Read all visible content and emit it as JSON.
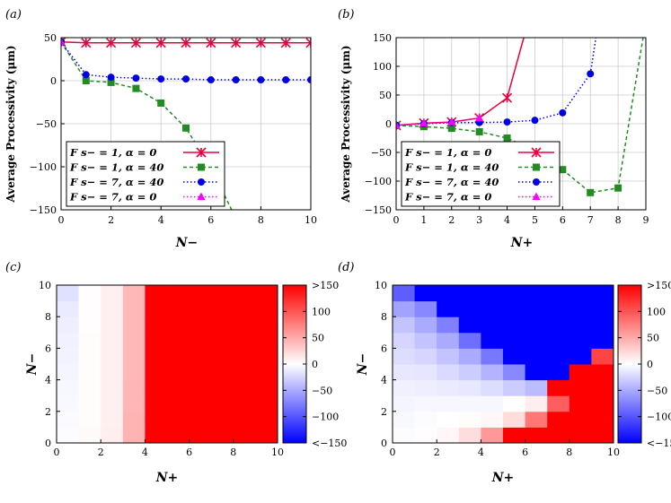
{
  "panels": {
    "a": {
      "label": "(a)"
    },
    "b": {
      "label": "(b)"
    },
    "c": {
      "label": "(c)"
    },
    "d": {
      "label": "(d)"
    }
  },
  "legend": {
    "entries": [
      {
        "text": "F s− = 1, α = 0",
        "color": "#e8003c",
        "marker": "star",
        "dash": "solid"
      },
      {
        "text": "F s− = 1, α = 40",
        "color": "#228b22",
        "marker": "square",
        "dash": "dashed"
      },
      {
        "text": "F s− = 7, α = 40",
        "color": "#0000e0",
        "marker": "circle",
        "dash": "dotted"
      },
      {
        "text": "F s− = 7, α = 0",
        "color": "#ff00ff",
        "marker": "triangle",
        "dash": "dotted"
      }
    ]
  },
  "colorbar": {
    "tick_labels": [
      ">150",
      "100",
      "50",
      "0",
      "−50",
      "−100",
      "<−150"
    ],
    "tick_values": [
      150,
      100,
      50,
      0,
      -50,
      -100,
      -150
    ],
    "colors": {
      "neg": "#0000ff",
      "zero": "#ffffff",
      "pos": "#ff0000"
    }
  },
  "chart_data": [
    {
      "panel": "a",
      "type": "line",
      "xlabel": "N−",
      "ylabel": "Average Processivity (μm)",
      "xlim": [
        0,
        10
      ],
      "ylim": [
        -150,
        50
      ],
      "xticks": [
        0,
        2,
        4,
        6,
        8,
        10
      ],
      "yticks": [
        -150,
        -100,
        -50,
        0,
        50
      ],
      "grid": true,
      "legend_position": "bottom-left",
      "series": [
        {
          "name": "F s− = 1, α = 0",
          "x": [
            0,
            1,
            2,
            3,
            4,
            5,
            6,
            7,
            8,
            9,
            10
          ],
          "y": [
            45,
            44,
            44,
            44,
            44,
            44,
            44,
            44,
            44,
            44,
            44
          ]
        },
        {
          "name": "F s− = 1, α = 40",
          "x": [
            0,
            1,
            2,
            3,
            4,
            5,
            6,
            7
          ],
          "y": [
            45,
            0,
            -2,
            -9,
            -26,
            -55,
            -101,
            -160
          ]
        },
        {
          "name": "F s− = 7, α = 40",
          "x": [
            0,
            1,
            2,
            3,
            4,
            5,
            6,
            7,
            8,
            9,
            10
          ],
          "y": [
            45,
            7,
            4,
            3,
            2,
            2,
            1,
            1,
            1,
            1,
            1
          ]
        },
        {
          "name": "F s− = 7, α = 0",
          "x": [
            0
          ],
          "y": [
            45
          ]
        }
      ]
    },
    {
      "panel": "b",
      "type": "line",
      "xlabel": "N+",
      "ylabel": "Average Processivity (μm)",
      "xlim": [
        0,
        9
      ],
      "ylim": [
        -150,
        150
      ],
      "xticks": [
        0,
        1,
        2,
        3,
        4,
        5,
        6,
        7,
        8,
        9
      ],
      "yticks": [
        -150,
        -100,
        -50,
        0,
        50,
        100,
        150
      ],
      "grid": true,
      "legend_position": "bottom-left",
      "series": [
        {
          "name": "F s− = 1, α = 0",
          "x": [
            0,
            1,
            2,
            3,
            4,
            4.6
          ],
          "y": [
            -3,
            1,
            3,
            10,
            45,
            150
          ]
        },
        {
          "name": "F s− = 1, α = 40",
          "x": [
            0,
            1,
            2,
            3,
            4,
            5,
            6,
            7,
            8,
            8.9
          ],
          "y": [
            -3,
            -5,
            -8,
            -14,
            -25,
            -46,
            -80,
            -120,
            -112,
            150
          ]
        },
        {
          "name": "F s− = 7, α = 40",
          "x": [
            0,
            1,
            2,
            3,
            4,
            5,
            6,
            7,
            7.2
          ],
          "y": [
            -3,
            0,
            2,
            2,
            3,
            6,
            19,
            87,
            150
          ]
        },
        {
          "name": "F s− = 7, α = 0",
          "x": [
            0,
            1,
            2,
            3
          ],
          "y": [
            -3,
            1,
            3,
            10
          ]
        }
      ]
    },
    {
      "panel": "c",
      "type": "heatmap",
      "xlabel": "N+",
      "ylabel": "N−",
      "xlim": [
        0,
        10
      ],
      "ylim": [
        0,
        10
      ],
      "xticks": [
        0,
        2,
        4,
        6,
        8,
        10
      ],
      "yticks": [
        0,
        2,
        4,
        6,
        8,
        10
      ],
      "zlim": [
        -150,
        150
      ],
      "rows_bottom_to_top": [
        [
          -2,
          3,
          10,
          45,
          150,
          150,
          150,
          150,
          150,
          150
        ],
        [
          -3,
          2,
          9,
          44,
          150,
          150,
          150,
          150,
          150,
          150
        ],
        [
          -4,
          2,
          9,
          43,
          150,
          150,
          150,
          150,
          150,
          150
        ],
        [
          -5,
          2,
          9,
          43,
          150,
          150,
          150,
          150,
          150,
          150
        ],
        [
          -6,
          2,
          9,
          42,
          150,
          150,
          150,
          150,
          150,
          150
        ],
        [
          -7,
          2,
          9,
          42,
          150,
          150,
          150,
          150,
          150,
          150
        ],
        [
          -8,
          2,
          9,
          42,
          150,
          150,
          150,
          150,
          150,
          150
        ],
        [
          -10,
          1,
          9,
          42,
          150,
          150,
          150,
          150,
          150,
          150
        ],
        [
          -12,
          1,
          9,
          42,
          150,
          150,
          150,
          150,
          150,
          150
        ],
        [
          -18,
          1,
          9,
          42,
          150,
          150,
          150,
          150,
          150,
          150
        ]
      ]
    },
    {
      "panel": "d",
      "type": "heatmap",
      "xlabel": "N+",
      "ylabel": "N−",
      "xlim": [
        0,
        10
      ],
      "ylim": [
        0,
        10
      ],
      "xticks": [
        0,
        2,
        4,
        6,
        8,
        10
      ],
      "yticks": [
        0,
        2,
        4,
        6,
        8,
        10
      ],
      "zlim": [
        -150,
        150
      ],
      "rows_bottom_to_top": [
        [
          -2,
          1,
          5,
          20,
          60,
          150,
          150,
          150,
          150,
          150
        ],
        [
          -4,
          -2,
          0,
          2,
          5,
          20,
          80,
          150,
          150,
          150
        ],
        [
          -6,
          -5,
          -5,
          -5,
          -5,
          0,
          10,
          95,
          150,
          150
        ],
        [
          -9,
          -10,
          -12,
          -14,
          -20,
          -30,
          -40,
          150,
          150,
          150
        ],
        [
          -14,
          -15,
          -22,
          -30,
          -45,
          -70,
          -150,
          -150,
          150,
          150
        ],
        [
          -20,
          -25,
          -35,
          -50,
          -80,
          -150,
          -150,
          -150,
          -150,
          110
        ],
        [
          -25,
          -35,
          -50,
          -85,
          -150,
          -150,
          -150,
          -150,
          -150,
          -150
        ],
        [
          -35,
          -50,
          -75,
          -150,
          -150,
          -150,
          -150,
          -150,
          -150,
          -150
        ],
        [
          -55,
          -70,
          -150,
          -150,
          -150,
          -150,
          -150,
          -150,
          -150,
          -150
        ],
        [
          -95,
          -150,
          -150,
          -150,
          -150,
          -150,
          -150,
          -150,
          -150,
          -150
        ]
      ]
    }
  ]
}
